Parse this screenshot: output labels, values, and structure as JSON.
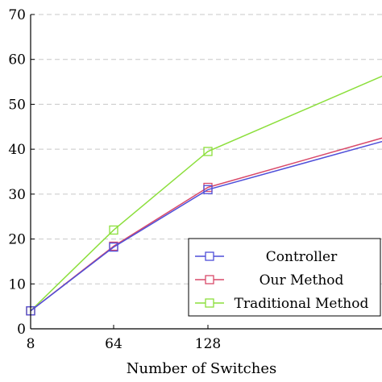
{
  "chart_data": {
    "type": "line",
    "xlabel": "Number of Switches",
    "ylabel": "",
    "title": "",
    "x": [
      8,
      64,
      128,
      256
    ],
    "x_tick_labels": [
      "8",
      "64",
      "128"
    ],
    "ylim": [
      0,
      70
    ],
    "y_ticks": [
      0,
      10,
      20,
      30,
      40,
      50,
      60,
      70
    ],
    "grid": "horizontal dashed",
    "legend_position": "bottom-right",
    "series": [
      {
        "name": "Controller",
        "color": "#4f4fd9",
        "values": [
          4,
          18.2,
          31,
          42.5
        ]
      },
      {
        "name": "Our Method",
        "color": "#d94a6a",
        "values": [
          4,
          18.4,
          31.5,
          43.3
        ]
      },
      {
        "name": "Traditional Method",
        "color": "#8cdf3c",
        "values": [
          4,
          22,
          39.5,
          57.5
        ]
      }
    ]
  }
}
